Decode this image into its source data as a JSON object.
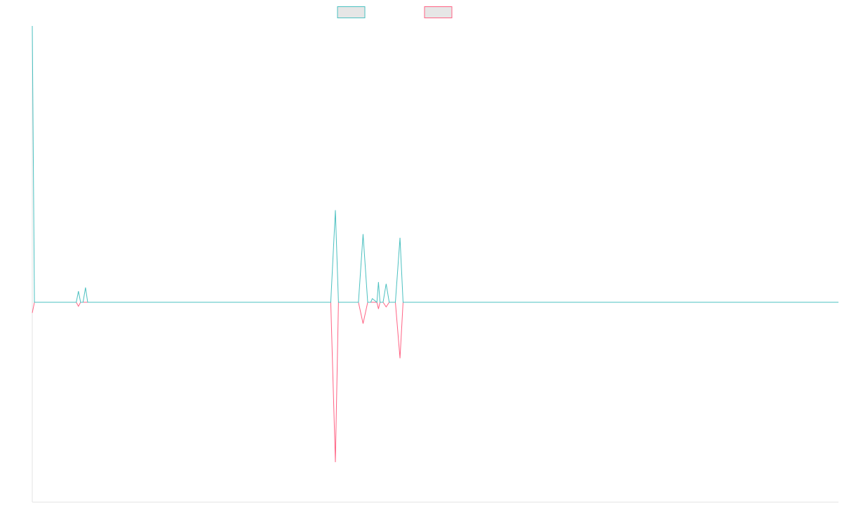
{
  "chart_data": {
    "type": "line",
    "title": "",
    "xlabel": "",
    "ylabel": "",
    "ylim": [
      -15,
      15
    ],
    "xlim": [
      0,
      262
    ],
    "grid": false,
    "legend_position": "top-center",
    "colors": {
      "series_0": "#4bc0c0",
      "series_1": "#ff6384",
      "legend_fill": "#e6e6e6",
      "axis": "#e3e3e3"
    },
    "series": [
      {
        "x": [
          0,
          0.7,
          1,
          1.5,
          14.3,
          15,
          15.7,
          16.5,
          17.3,
          18,
          18.7,
          19.3,
          20,
          21,
          97,
          98.5,
          99.5,
          106,
          107.5,
          109,
          110,
          110.5,
          112,
          112.5,
          113,
          114,
          115,
          116,
          116.5,
          118,
          119.5,
          120.5,
          121,
          262
        ],
        "y": [
          15,
          0,
          0,
          0,
          0,
          0.6,
          0,
          0,
          0.8,
          0,
          0,
          0,
          0,
          0,
          0,
          5,
          0,
          0,
          3.7,
          0,
          0,
          0.2,
          0,
          1.1,
          0,
          0,
          1,
          0,
          0,
          0,
          3.5,
          0,
          0,
          0
        ]
      },
      {
        "x": [
          0,
          0.7,
          1,
          1.5,
          14.3,
          15,
          15.7,
          16.5,
          17.3,
          18,
          18.7,
          19.3,
          20,
          21,
          97,
          98.5,
          99.5,
          106,
          107.5,
          109,
          110,
          110.5,
          112,
          112.5,
          113,
          114,
          115,
          116,
          116.5,
          118,
          119.5,
          120.5,
          121,
          262
        ],
        "y": [
          -0.8,
          0,
          0,
          0,
          0,
          -0.3,
          0,
          0,
          0,
          0,
          0,
          0,
          0,
          0,
          0,
          -12,
          0,
          0,
          -1.6,
          0,
          0,
          0,
          0,
          -0.5,
          0,
          0,
          -0.35,
          0,
          0,
          0,
          -4.2,
          0,
          0,
          0
        ]
      }
    ]
  }
}
